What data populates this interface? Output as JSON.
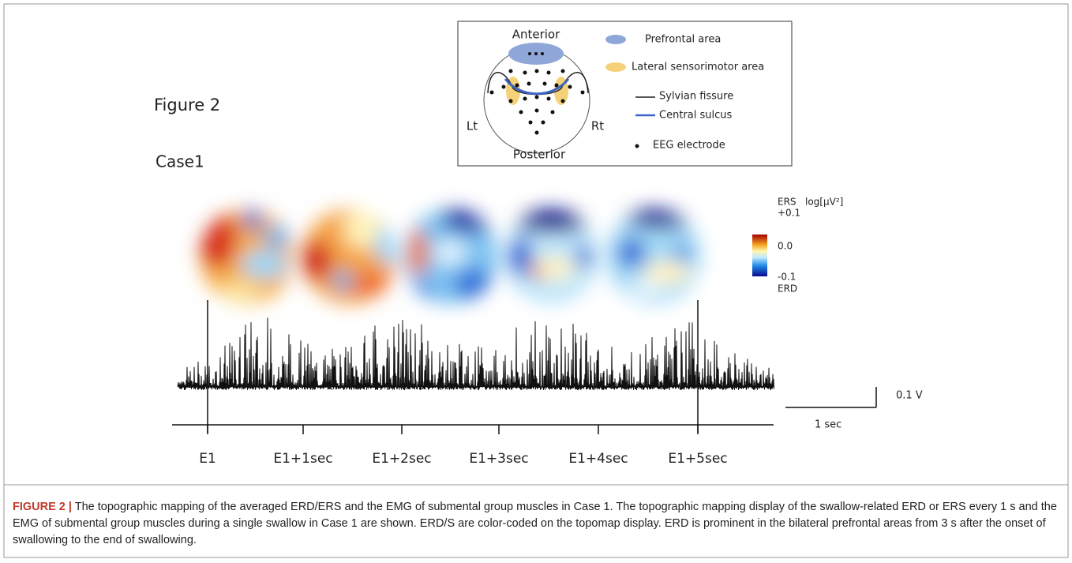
{
  "figure": {
    "label": "Figure 2",
    "case": "Case1"
  },
  "legend": {
    "anterior": "Anterior",
    "posterior": "Posterior",
    "left": "Lt",
    "right": "Rt",
    "items": [
      "Prefrontal area",
      "Lateral sensorimotor area",
      "Sylvian fissure",
      "Central sulcus",
      "EEG electrode"
    ]
  },
  "colorbar": {
    "top_label": "ERS",
    "unit": "log[µV²]",
    "max": "+0.1",
    "mid": "0.0",
    "min": "-0.1",
    "bottom_label": "ERD"
  },
  "timeline": {
    "labels": [
      "E1",
      "E1+1sec",
      "E1+2sec",
      "E1+3sec",
      "E1+4sec",
      "E1+5sec"
    ]
  },
  "scale_bar": {
    "amplitude": "0.1 V",
    "time": "1 sec"
  },
  "caption": {
    "label": "FIGURE 2 |",
    "text": "The topographic mapping of the averaged ERD/ERS and the EMG of submental group muscles in Case 1. The topographic mapping display of the swallow-related ERD or ERS every 1 s and the EMG of submental group muscles during a single swallow in Case 1 are shown. ERD/S are color-coded on the topomap display. ERD is prominent in the bilateral prefrontal areas from 3 s after the onset of swallowing to the end of swallowing."
  }
}
